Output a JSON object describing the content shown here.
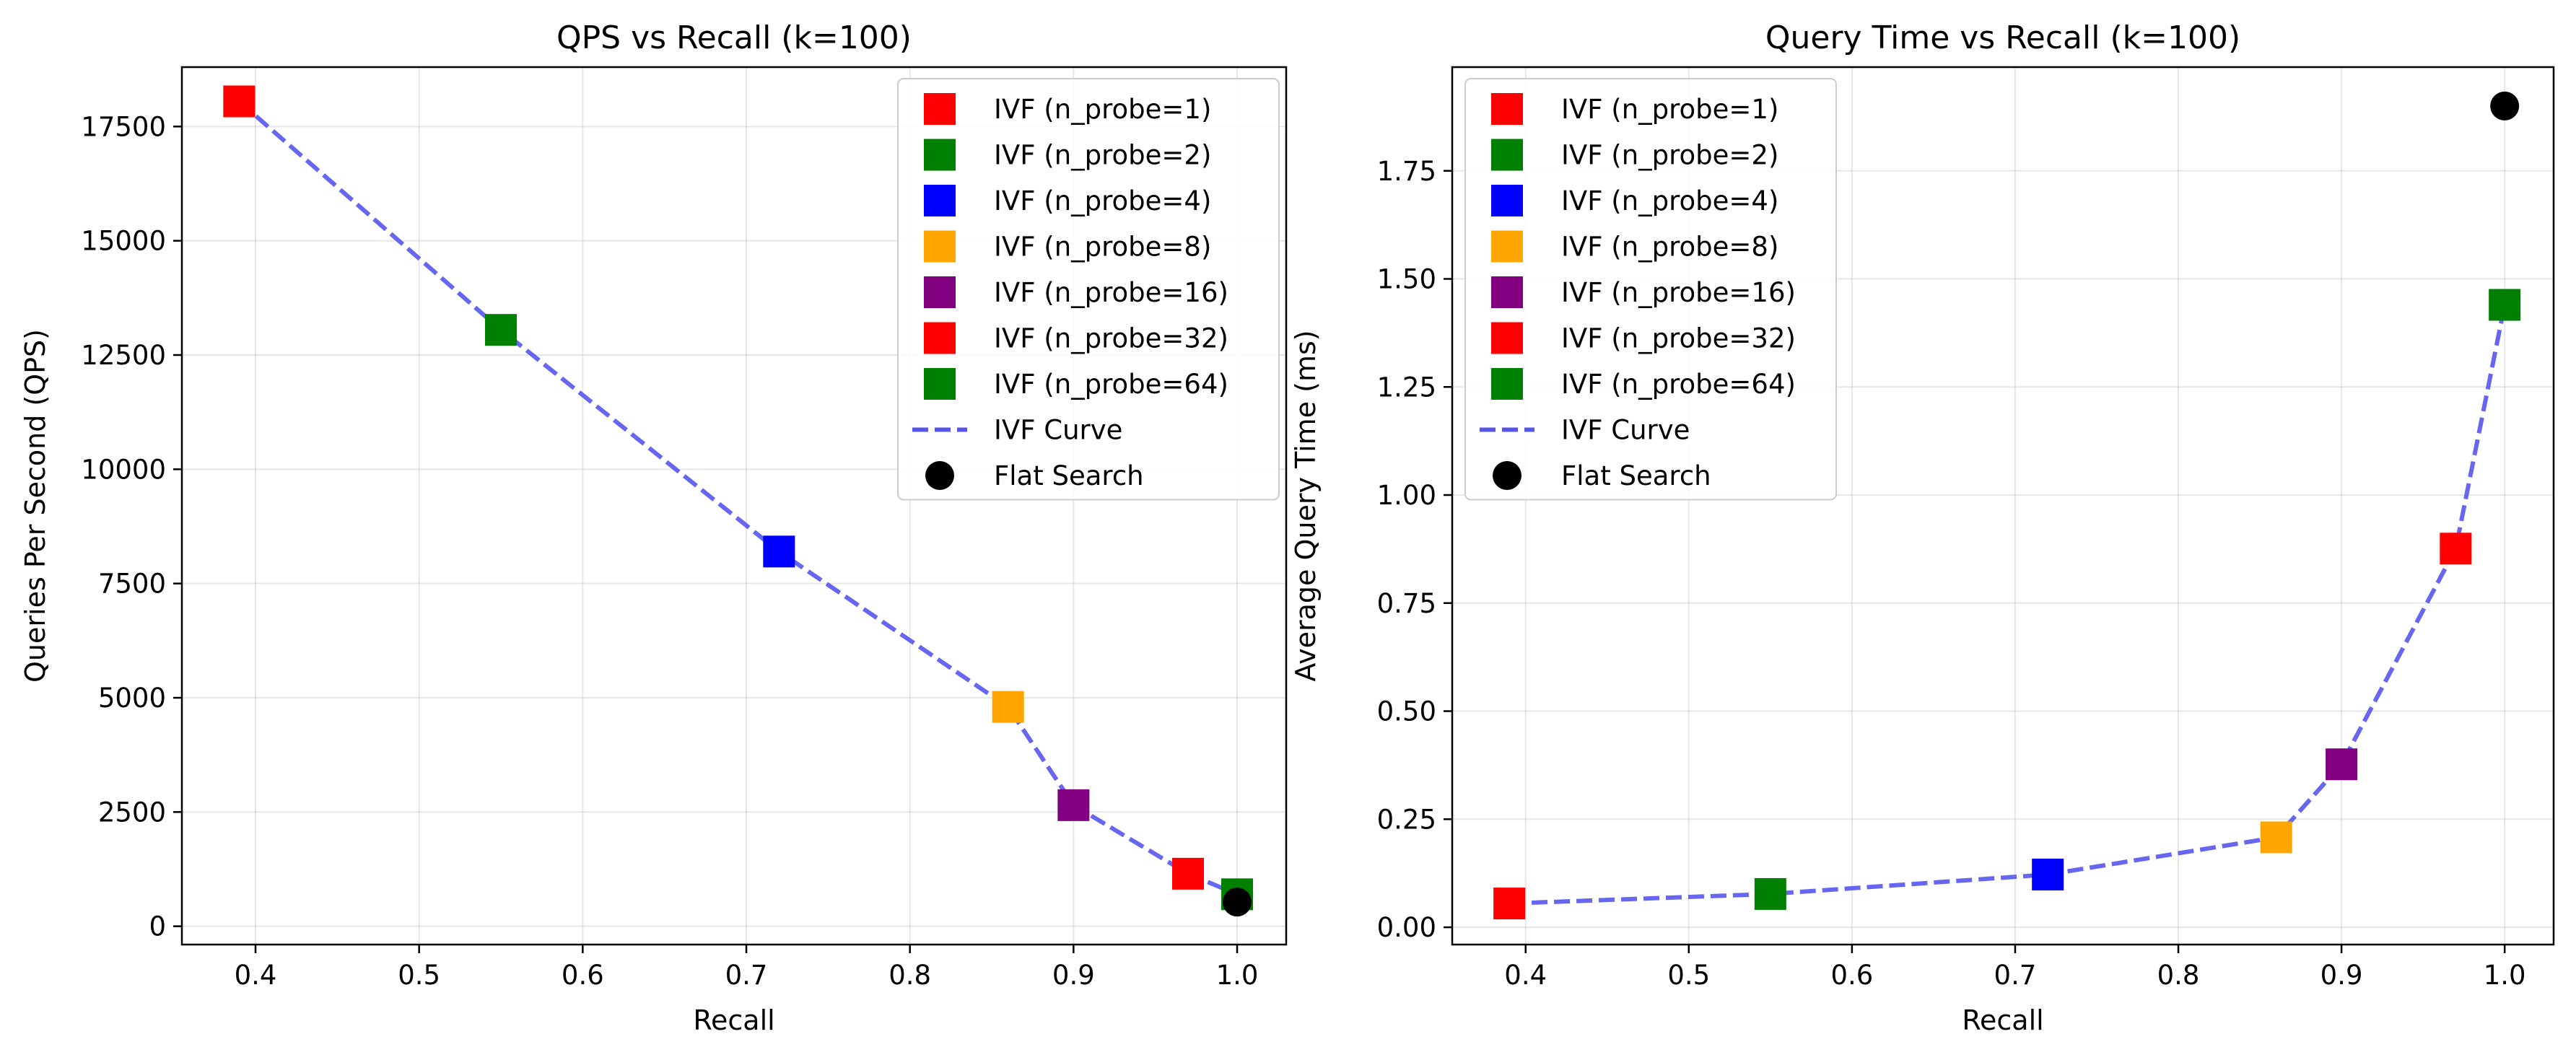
{
  "chart_data": [
    {
      "type": "scatter",
      "title": "QPS vs Recall (k=100)",
      "xlabel": "Recall",
      "ylabel": "Queries Per Second (QPS)",
      "xlim": [
        0.355,
        1.03
      ],
      "ylim": [
        -400,
        18800
      ],
      "xticks": [
        0.4,
        0.5,
        0.6,
        0.7,
        0.8,
        0.9,
        1.0
      ],
      "xtick_labels": [
        "0.4",
        "0.5",
        "0.6",
        "0.7",
        "0.8",
        "0.9",
        "1.0"
      ],
      "yticks": [
        0,
        2500,
        5000,
        7500,
        10000,
        12500,
        15000,
        17500
      ],
      "ytick_labels": [
        "0",
        "2500",
        "5000",
        "7500",
        "10000",
        "12500",
        "15000",
        "17500"
      ],
      "grid": true,
      "legend_position": "top-right",
      "series": [
        {
          "name": "IVF (n_probe=1)",
          "marker": "square",
          "color": "#ff0000",
          "x": [
            0.39
          ],
          "y": [
            18050
          ]
        },
        {
          "name": "IVF (n_probe=2)",
          "marker": "square",
          "color": "#008000",
          "x": [
            0.55
          ],
          "y": [
            13050
          ]
        },
        {
          "name": "IVF (n_probe=4)",
          "marker": "square",
          "color": "#0000ff",
          "x": [
            0.72
          ],
          "y": [
            8200
          ]
        },
        {
          "name": "IVF (n_probe=8)",
          "marker": "square",
          "color": "#ffa500",
          "x": [
            0.86
          ],
          "y": [
            4800
          ]
        },
        {
          "name": "IVF (n_probe=16)",
          "marker": "square",
          "color": "#800080",
          "x": [
            0.9
          ],
          "y": [
            2650
          ]
        },
        {
          "name": "IVF (n_probe=32)",
          "marker": "square",
          "color": "#ff0000",
          "x": [
            0.97
          ],
          "y": [
            1150
          ]
        },
        {
          "name": "IVF (n_probe=64)",
          "marker": "square",
          "color": "#008000",
          "x": [
            1.0
          ],
          "y": [
            700
          ]
        },
        {
          "name": "IVF Curve",
          "marker": "dashed-line",
          "color": "#5555ee",
          "x": [
            0.39,
            0.55,
            0.72,
            0.86,
            0.9,
            0.97,
            1.0
          ],
          "y": [
            18050,
            13050,
            8200,
            4800,
            2650,
            1150,
            700
          ]
        },
        {
          "name": "Flat Search",
          "marker": "circle",
          "color": "#000000",
          "x": [
            1.0
          ],
          "y": [
            530
          ]
        }
      ]
    },
    {
      "type": "scatter",
      "title": "Query Time vs Recall (k=100)",
      "xlabel": "Recall",
      "ylabel": "Average Query Time (ms)",
      "xlim": [
        0.355,
        1.03
      ],
      "ylim": [
        -0.04,
        1.99
      ],
      "xticks": [
        0.4,
        0.5,
        0.6,
        0.7,
        0.8,
        0.9,
        1.0
      ],
      "xtick_labels": [
        "0.4",
        "0.5",
        "0.6",
        "0.7",
        "0.8",
        "0.9",
        "1.0"
      ],
      "yticks": [
        0.0,
        0.25,
        0.5,
        0.75,
        1.0,
        1.25,
        1.5,
        1.75
      ],
      "ytick_labels": [
        "0.00",
        "0.25",
        "0.50",
        "0.75",
        "1.00",
        "1.25",
        "1.50",
        "1.75"
      ],
      "grid": true,
      "legend_position": "top-left",
      "series": [
        {
          "name": "IVF (n_probe=1)",
          "marker": "square",
          "color": "#ff0000",
          "x": [
            0.39
          ],
          "y": [
            0.055
          ]
        },
        {
          "name": "IVF (n_probe=2)",
          "marker": "square",
          "color": "#008000",
          "x": [
            0.55
          ],
          "y": [
            0.077
          ]
        },
        {
          "name": "IVF (n_probe=4)",
          "marker": "square",
          "color": "#0000ff",
          "x": [
            0.72
          ],
          "y": [
            0.122
          ]
        },
        {
          "name": "IVF (n_probe=8)",
          "marker": "square",
          "color": "#ffa500",
          "x": [
            0.86
          ],
          "y": [
            0.208
          ]
        },
        {
          "name": "IVF (n_probe=16)",
          "marker": "square",
          "color": "#800080",
          "x": [
            0.9
          ],
          "y": [
            0.377
          ]
        },
        {
          "name": "IVF (n_probe=32)",
          "marker": "square",
          "color": "#ff0000",
          "x": [
            0.97
          ],
          "y": [
            0.876
          ]
        },
        {
          "name": "IVF (n_probe=64)",
          "marker": "square",
          "color": "#008000",
          "x": [
            1.0
          ],
          "y": [
            1.44
          ]
        },
        {
          "name": "IVF Curve",
          "marker": "dashed-line",
          "color": "#5555ee",
          "x": [
            0.39,
            0.55,
            0.72,
            0.86,
            0.9,
            0.97,
            1.0
          ],
          "y": [
            0.055,
            0.077,
            0.122,
            0.208,
            0.377,
            0.876,
            1.44
          ]
        },
        {
          "name": "Flat Search",
          "marker": "circle",
          "color": "#000000",
          "x": [
            1.0
          ],
          "y": [
            1.9
          ]
        }
      ]
    }
  ]
}
